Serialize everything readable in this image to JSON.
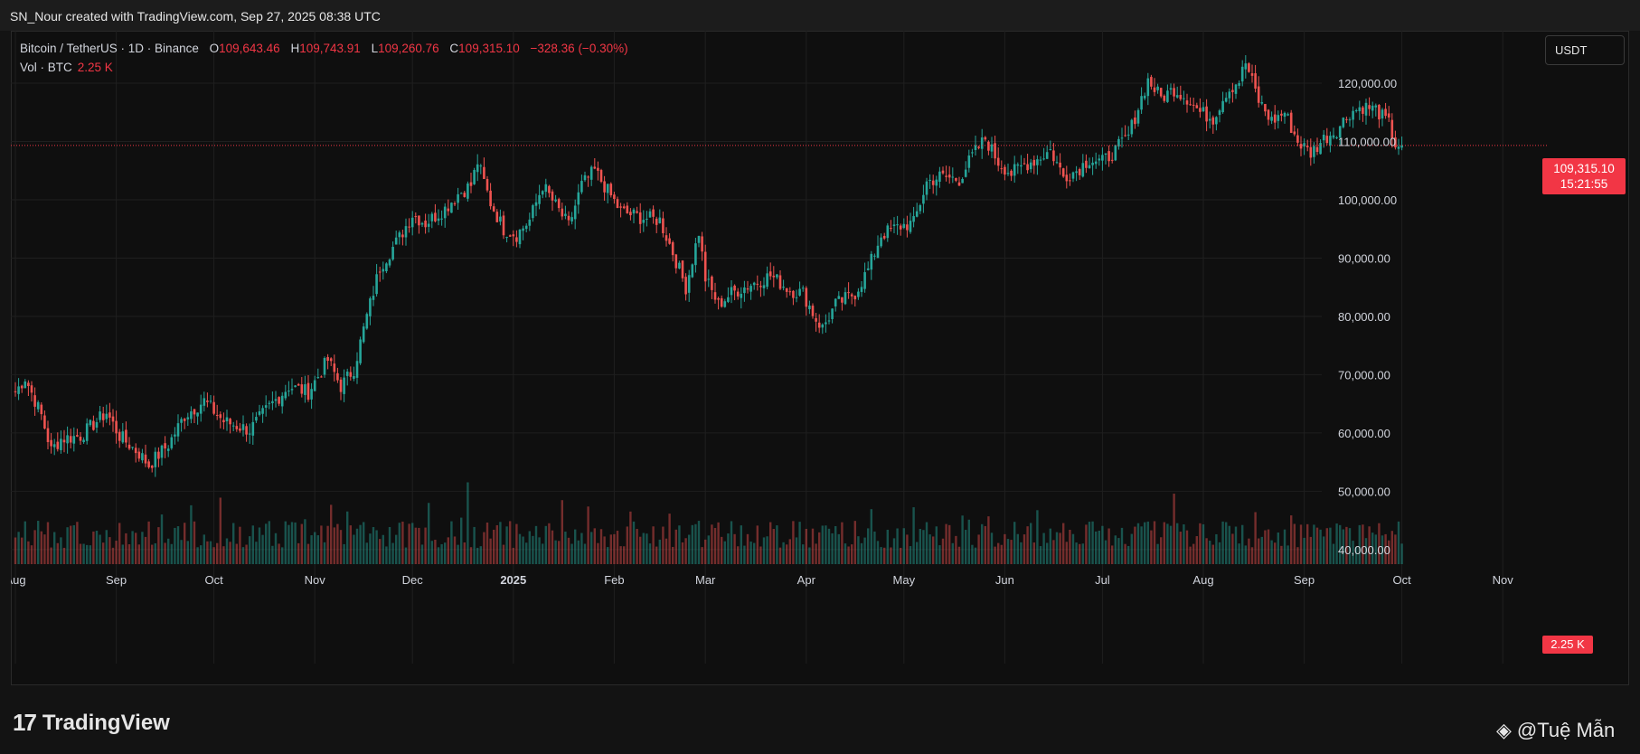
{
  "header": {
    "credit": "SN_Nour created with TradingView.com, Sep 27, 2025 08:38 UTC"
  },
  "legend": {
    "symbol": "Bitcoin / TetherUS · 1D · Binance",
    "o_label": "O",
    "o": "109,643.46",
    "h_label": "H",
    "h": "109,743.91",
    "l_label": "L",
    "l": "109,260.76",
    "c_label": "C",
    "c": "109,315.10",
    "change": "−328.36 (−0.30%)"
  },
  "volume_legend": {
    "label": "Vol · BTC",
    "value": "2.25 K"
  },
  "currency": "USDT",
  "price_tag": {
    "price": "109,315.10",
    "countdown": "15:21:55"
  },
  "volume_tag": "2.25 K",
  "branding": {
    "logo": "TradingView",
    "watermark": "@Tuệ Mẫn"
  },
  "colors": {
    "up": "#26a69a",
    "down": "#ef5350",
    "last_price": "#f23645"
  },
  "chart_data": {
    "type": "candlestick",
    "interval": "1D",
    "price_axis": {
      "ticks": [
        "120,000.00",
        "110,000.00",
        "100,000.00",
        "90,000.00",
        "80,000.00",
        "70,000.00",
        "60,000.00",
        "50,000.00",
        "40,000.00"
      ],
      "tick_values": [
        120000,
        110000,
        100000,
        90000,
        80000,
        70000,
        60000,
        50000,
        40000
      ],
      "range": [
        37500,
        129000
      ]
    },
    "time_axis": {
      "labels": [
        "Aug",
        "Sep",
        "Oct",
        "Nov",
        "Dec",
        "2025",
        "Feb",
        "Mar",
        "Apr",
        "May",
        "Jun",
        "Jul",
        "Aug",
        "Sep",
        "Oct",
        "Nov"
      ],
      "days": [
        0,
        31,
        61,
        92,
        122,
        153,
        184,
        212,
        243,
        273,
        304,
        334,
        365,
        396,
        426,
        457
      ]
    },
    "last_price": 109315.1,
    "grid": true,
    "price_path": [
      [
        0,
        67000
      ],
      [
        3,
        69500
      ],
      [
        8,
        63000
      ],
      [
        11,
        57000
      ],
      [
        14,
        59000
      ],
      [
        20,
        59500
      ],
      [
        28,
        63500
      ],
      [
        32,
        59500
      ],
      [
        38,
        56500
      ],
      [
        41,
        54500
      ],
      [
        47,
        58000
      ],
      [
        52,
        63000
      ],
      [
        58,
        65500
      ],
      [
        64,
        62000
      ],
      [
        72,
        60500
      ],
      [
        78,
        64500
      ],
      [
        84,
        68000
      ],
      [
        90,
        67000
      ],
      [
        96,
        72500
      ],
      [
        100,
        68000
      ],
      [
        104,
        71000
      ],
      [
        108,
        80000
      ],
      [
        112,
        88500
      ],
      [
        118,
        93500
      ],
      [
        122,
        97500
      ],
      [
        126,
        96000
      ],
      [
        132,
        98500
      ],
      [
        136,
        101000
      ],
      [
        140,
        102500
      ],
      [
        142,
        106500
      ],
      [
        146,
        99500
      ],
      [
        150,
        95000
      ],
      [
        154,
        94000
      ],
      [
        158,
        96500
      ],
      [
        162,
        102500
      ],
      [
        166,
        99000
      ],
      [
        170,
        95500
      ],
      [
        174,
        102500
      ],
      [
        178,
        105000
      ],
      [
        182,
        101500
      ],
      [
        186,
        98000
      ],
      [
        192,
        97000
      ],
      [
        198,
        96500
      ],
      [
        202,
        91000
      ],
      [
        206,
        85000
      ],
      [
        210,
        94500
      ],
      [
        212,
        86500
      ],
      [
        216,
        82000
      ],
      [
        220,
        84000
      ],
      [
        226,
        85500
      ],
      [
        232,
        87000
      ],
      [
        238,
        84500
      ],
      [
        242,
        84000
      ],
      [
        246,
        79500
      ],
      [
        248,
        78000
      ],
      [
        252,
        82000
      ],
      [
        258,
        84000
      ],
      [
        262,
        88000
      ],
      [
        266,
        94000
      ],
      [
        272,
        95500
      ],
      [
        276,
        96000
      ],
      [
        280,
        103000
      ],
      [
        284,
        104000
      ],
      [
        290,
        103500
      ],
      [
        294,
        107500
      ],
      [
        298,
        110500
      ],
      [
        302,
        106500
      ],
      [
        306,
        104500
      ],
      [
        310,
        106000
      ],
      [
        314,
        107000
      ],
      [
        318,
        108500
      ],
      [
        322,
        104000
      ],
      [
        326,
        105000
      ],
      [
        330,
        107000
      ],
      [
        334,
        106500
      ],
      [
        338,
        108500
      ],
      [
        342,
        111000
      ],
      [
        346,
        117500
      ],
      [
        348,
        120500
      ],
      [
        352,
        117500
      ],
      [
        356,
        119000
      ],
      [
        360,
        117500
      ],
      [
        364,
        115000
      ],
      [
        368,
        114000
      ],
      [
        372,
        118500
      ],
      [
        376,
        120500
      ],
      [
        378,
        123500
      ],
      [
        382,
        117000
      ],
      [
        386,
        113500
      ],
      [
        390,
        115000
      ],
      [
        394,
        110000
      ],
      [
        398,
        108000
      ],
      [
        402,
        110500
      ],
      [
        406,
        112000
      ],
      [
        410,
        115000
      ],
      [
        414,
        116000
      ],
      [
        418,
        115500
      ],
      [
        422,
        113000
      ],
      [
        424,
        109500
      ],
      [
        426,
        109315
      ]
    ],
    "volume_axis_hidden": true
  }
}
